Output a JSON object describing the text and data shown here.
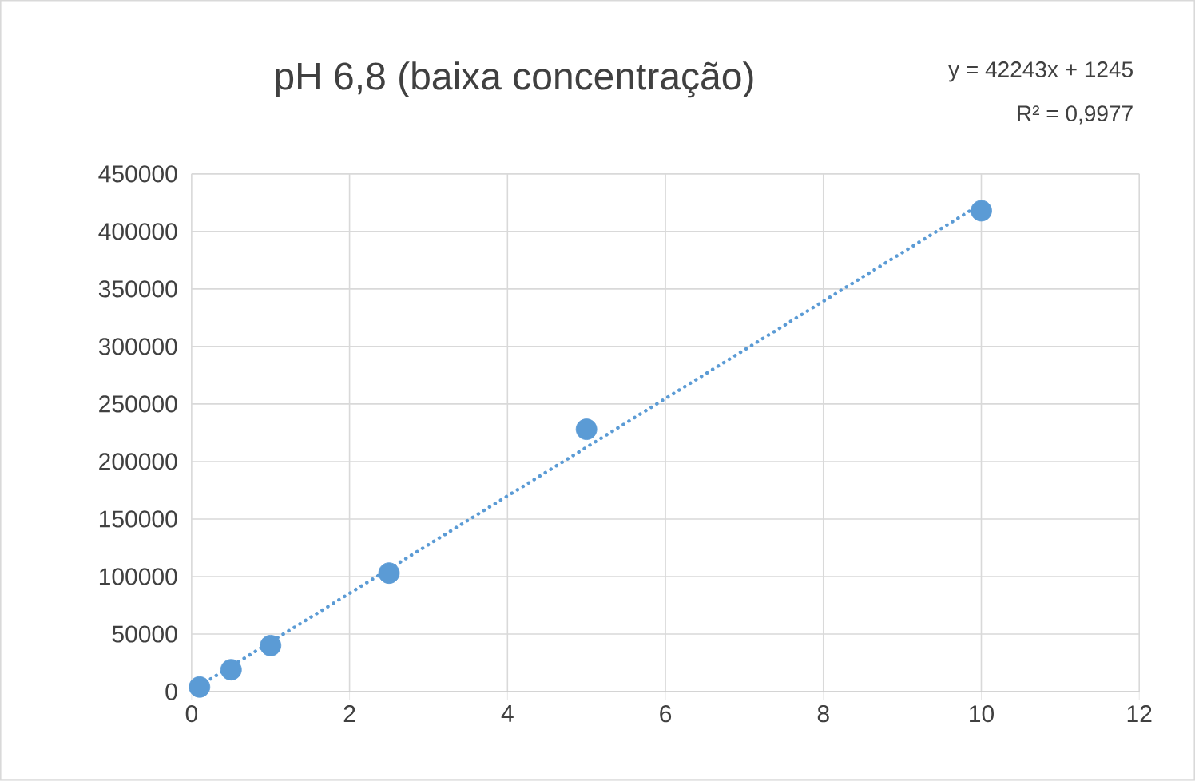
{
  "chart_data": {
    "type": "scatter",
    "title": "pH 6,8 (baixa concentração)",
    "annotations": [
      "y = 42243x + 1245",
      "R² = 0,9977"
    ],
    "xlim": [
      0,
      12
    ],
    "ylim": [
      0,
      450000
    ],
    "xticks": [
      0,
      2,
      4,
      6,
      8,
      10,
      12
    ],
    "yticks": [
      0,
      50000,
      100000,
      150000,
      200000,
      250000,
      300000,
      350000,
      400000,
      450000
    ],
    "grid": true,
    "series": [
      {
        "color": "#5b9bd5",
        "marker": "circle",
        "x": [
          0.1,
          0.5,
          1,
          2.5,
          5,
          10
        ],
        "values": [
          4000,
          19000,
          40000,
          103000,
          228000,
          418000
        ]
      },
      {
        "type": "line",
        "color": "#5b9bd5",
        "line_style": "dotted",
        "marker": "none",
        "x": [
          0.1,
          10
        ],
        "values": [
          5000,
          424000
        ]
      }
    ]
  }
}
